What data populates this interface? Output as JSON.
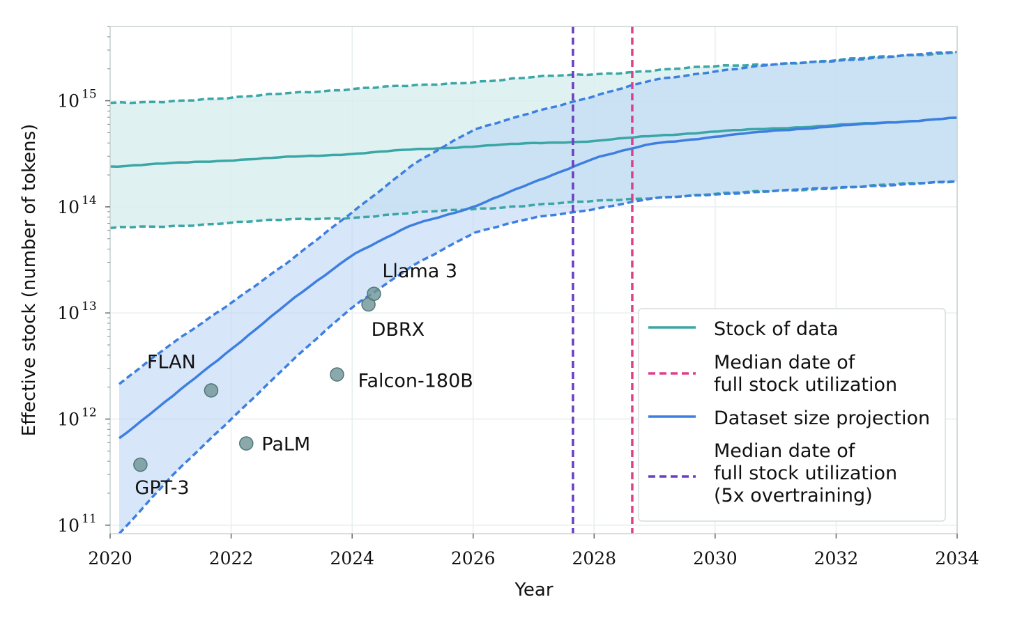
{
  "chart_data": {
    "type": "line",
    "title": "",
    "xlabel": "Year",
    "ylabel": "Effective stock (number of tokens)",
    "yscale": "log",
    "xlim": [
      2020,
      2034
    ],
    "ylim_exp": [
      10.92,
      15.7
    ],
    "x_ticks": [
      2020,
      2022,
      2024,
      2026,
      2028,
      2030,
      2032,
      2034
    ],
    "y_ticks": [
      {
        "base": "10",
        "exp": "11",
        "value": 11
      },
      {
        "base": "10",
        "exp": "12",
        "value": 12
      },
      {
        "base": "10",
        "exp": "13",
        "value": 13
      },
      {
        "base": "10",
        "exp": "14",
        "value": 14
      },
      {
        "base": "10",
        "exp": "15",
        "value": 15
      }
    ],
    "grid": true,
    "legend_position": "bottom-right",
    "series": [
      {
        "name": "Stock of data",
        "color": "#3aa6a6",
        "x": [
          2020,
          2021,
          2022,
          2023,
          2024,
          2025,
          2026,
          2027,
          2028,
          2029,
          2030,
          2031,
          2032,
          2033,
          2034
        ],
        "median_log10": [
          14.38,
          14.41,
          14.44,
          14.47,
          14.5,
          14.54,
          14.57,
          14.6,
          14.62,
          14.67,
          14.71,
          14.74,
          14.77,
          14.8,
          14.84
        ],
        "lower_log10": [
          13.8,
          13.82,
          13.85,
          13.88,
          13.9,
          13.94,
          13.98,
          14.02,
          14.05,
          14.09,
          14.12,
          14.15,
          14.18,
          14.21,
          14.24
        ],
        "upper_log10": [
          14.98,
          15.0,
          15.02,
          15.08,
          15.11,
          15.14,
          15.18,
          15.22,
          15.25,
          15.29,
          15.32,
          15.35,
          15.38,
          15.42,
          15.46
        ]
      },
      {
        "name": "Dataset size projection",
        "color": "#3d7fe0",
        "x": [
          2020.15,
          2021,
          2022,
          2023,
          2024,
          2025,
          2026,
          2027,
          2028,
          2029,
          2030,
          2031,
          2032,
          2033,
          2034
        ],
        "median_log10": [
          11.82,
          12.2,
          12.66,
          13.12,
          13.55,
          13.83,
          14.0,
          14.23,
          14.46,
          14.6,
          14.66,
          14.72,
          14.76,
          14.8,
          14.84
        ],
        "lower_log10": [
          10.92,
          11.45,
          12.0,
          12.55,
          13.05,
          13.45,
          13.75,
          13.9,
          13.98,
          14.08,
          14.12,
          14.15,
          14.18,
          14.21,
          14.24
        ],
        "upper_log10": [
          12.33,
          12.7,
          13.1,
          13.5,
          13.95,
          14.4,
          14.72,
          14.9,
          15.04,
          15.2,
          15.28,
          15.34,
          15.38,
          15.42,
          15.46
        ]
      }
    ],
    "vlines": [
      {
        "label": "Median date of full stock utilization",
        "x": 2028.63,
        "color": "#de3f8a"
      },
      {
        "label": "Median date of full stock utilization (5x overtraining)",
        "x": 2027.65,
        "color": "#6a3fc0"
      }
    ],
    "points": [
      {
        "label": "GPT-3",
        "x": 2020.5,
        "y_log10": 11.57
      },
      {
        "label": "FLAN",
        "x": 2021.67,
        "y_log10": 12.27
      },
      {
        "label": "PaLM",
        "x": 2022.25,
        "y_log10": 11.77
      },
      {
        "label": "Falcon-180B",
        "x": 2023.75,
        "y_log10": 12.42
      },
      {
        "label": "DBRX",
        "x": 2024.27,
        "y_log10": 13.08
      },
      {
        "label": "Llama 3",
        "x": 2024.36,
        "y_log10": 13.18
      }
    ],
    "point_color": "#6e9495",
    "legend": [
      {
        "kind": "solid",
        "color": "#3aa6a6",
        "lines": [
          "Stock of data"
        ]
      },
      {
        "kind": "dashed",
        "color": "#de3f8a",
        "lines": [
          "Median date of",
          "full stock utilization"
        ]
      },
      {
        "kind": "solid",
        "color": "#3d7fe0",
        "lines": [
          "Dataset size projection"
        ]
      },
      {
        "kind": "dashed",
        "color": "#6a3fc0",
        "lines": [
          "Median date of",
          "full stock utilization",
          "(5x overtraining)"
        ]
      }
    ]
  }
}
